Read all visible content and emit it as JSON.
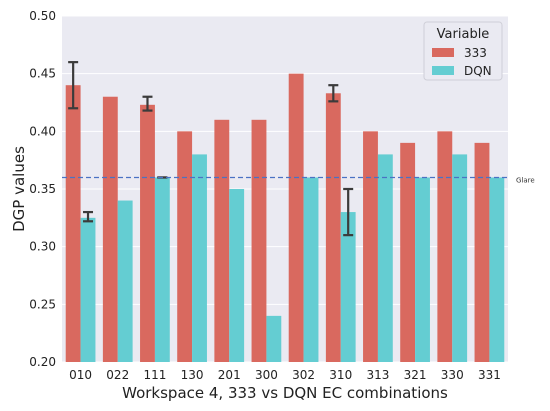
{
  "chart_data": {
    "type": "bar",
    "xlabel": "Workspace 4, 333 vs DQN EC combinations",
    "ylabel": "DGP values",
    "ylim": [
      0.2,
      0.5
    ],
    "yticks": [
      "0.20",
      "0.25",
      "0.30",
      "0.35",
      "0.40",
      "0.45",
      "0.50"
    ],
    "categories": [
      "010",
      "022",
      "111",
      "130",
      "201",
      "300",
      "302",
      "310",
      "313",
      "321",
      "330",
      "331"
    ],
    "legend": {
      "title": "Variable",
      "placement": "top-right"
    },
    "grid": true,
    "series": [
      {
        "name": "333",
        "color": "#d9695f",
        "values": [
          0.44,
          0.43,
          0.423,
          0.4,
          0.41,
          0.41,
          0.45,
          0.433,
          0.4,
          0.39,
          0.4,
          0.39
        ],
        "error_low": [
          0.42,
          null,
          0.418,
          null,
          null,
          null,
          null,
          0.426,
          null,
          null,
          null,
          null
        ],
        "error_high": [
          0.46,
          null,
          0.43,
          null,
          null,
          null,
          null,
          0.44,
          null,
          null,
          null,
          null
        ]
      },
      {
        "name": "DQN",
        "color": "#64cdd2",
        "values": [
          0.325,
          0.34,
          0.36,
          0.38,
          0.35,
          0.24,
          0.36,
          0.33,
          0.38,
          0.36,
          0.38,
          0.36
        ],
        "error_low": [
          0.322,
          null,
          0.36,
          null,
          null,
          null,
          null,
          0.31,
          null,
          null,
          null,
          null
        ],
        "error_high": [
          0.33,
          null,
          0.36,
          null,
          null,
          null,
          null,
          0.35,
          null,
          null,
          null,
          null
        ]
      }
    ],
    "reference_line": {
      "value": 0.36,
      "label": "Glare",
      "color": "#4a72c4",
      "style": "dashed"
    }
  }
}
